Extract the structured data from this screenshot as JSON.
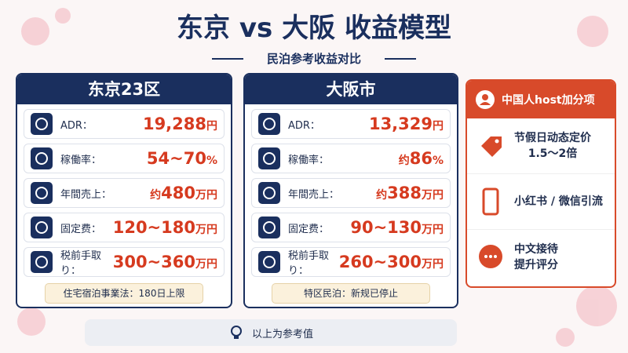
{
  "title": "东京 vs 大阪 收益模型",
  "subtitle": "民泊参考收益对比",
  "cards": [
    {
      "title": "东京23区",
      "rows": [
        {
          "label": "ADR：",
          "value": "19,288",
          "unit": "円"
        },
        {
          "label": "稼働率：",
          "value": "54~70",
          "unit": "%"
        },
        {
          "label": "年間売上：",
          "prefix": "约",
          "value": "480",
          "unit": "万円"
        },
        {
          "label": "固定费：",
          "value": "120~180",
          "unit": "万円"
        },
        {
          "label": "税前手取り：",
          "value": "300~360",
          "unit": "万円"
        }
      ],
      "note": "住宅宿泊事業法：180日上限"
    },
    {
      "title": "大阪市",
      "rows": [
        {
          "label": "ADR：",
          "value": "13,329",
          "unit": "円"
        },
        {
          "label": "稼働率：",
          "prefix": "约",
          "value": "86",
          "unit": "%"
        },
        {
          "label": "年間売上：",
          "prefix": "约",
          "value": "388",
          "unit": "万円"
        },
        {
          "label": "固定费：",
          "value": "90~130",
          "unit": "万円"
        },
        {
          "label": "税前手取り：",
          "value": "260~300",
          "unit": "万円"
        }
      ],
      "note": "特区民泊：新规已停止"
    }
  ],
  "bonus": {
    "title": "中国人host加分项",
    "items": [
      {
        "lines": [
          "节假日动态定价",
          "1.5～2倍"
        ]
      },
      {
        "lines": [
          "小红书 / 微信引流"
        ]
      },
      {
        "lines": [
          "中文接待",
          "提升评分"
        ]
      }
    ]
  },
  "footer": "以上为参考值"
}
